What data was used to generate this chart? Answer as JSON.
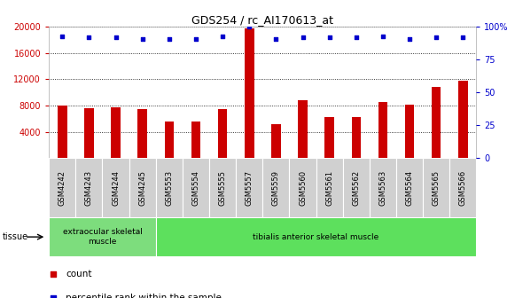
{
  "title": "GDS254 / rc_AI170613_at",
  "categories": [
    "GSM4242",
    "GSM4243",
    "GSM4244",
    "GSM4245",
    "GSM5553",
    "GSM5554",
    "GSM5555",
    "GSM5557",
    "GSM5559",
    "GSM5560",
    "GSM5561",
    "GSM5562",
    "GSM5563",
    "GSM5564",
    "GSM5565",
    "GSM5566"
  ],
  "counts": [
    8050,
    7600,
    7700,
    7400,
    5600,
    5500,
    7400,
    19700,
    5200,
    8800,
    6200,
    6300,
    8500,
    8100,
    10800,
    11800
  ],
  "percentiles": [
    93,
    92,
    92,
    91,
    91,
    91,
    93,
    100,
    91,
    92,
    92,
    92,
    93,
    91,
    92,
    92
  ],
  "bar_color": "#cc0000",
  "dot_color": "#0000cc",
  "ylim_left": [
    0,
    20000
  ],
  "ylim_right": [
    0,
    100
  ],
  "yticks_left": [
    4000,
    8000,
    12000,
    16000,
    20000
  ],
  "yticks_right": [
    0,
    25,
    50,
    75,
    100
  ],
  "tissue_groups_order": [
    "extraocular skeletal\nmuscle",
    "tibialis anterior skeletal muscle"
  ],
  "tissue_groups": {
    "extraocular skeletal\nmuscle": [
      0,
      4
    ],
    "tibialis anterior skeletal muscle": [
      4,
      16
    ]
  },
  "tissue_label": "tissue",
  "legend_count_label": "count",
  "legend_percentile_label": "percentile rank within the sample",
  "plot_bg_color": "#ffffff",
  "xtick_bg_color": "#d0d0d0",
  "tissue1_color": "#7ddd7d",
  "tissue2_color": "#5de05d",
  "grid_color": "#000000",
  "axis_left_color": "#cc0000",
  "axis_right_color": "#0000cc",
  "bar_width": 0.35
}
